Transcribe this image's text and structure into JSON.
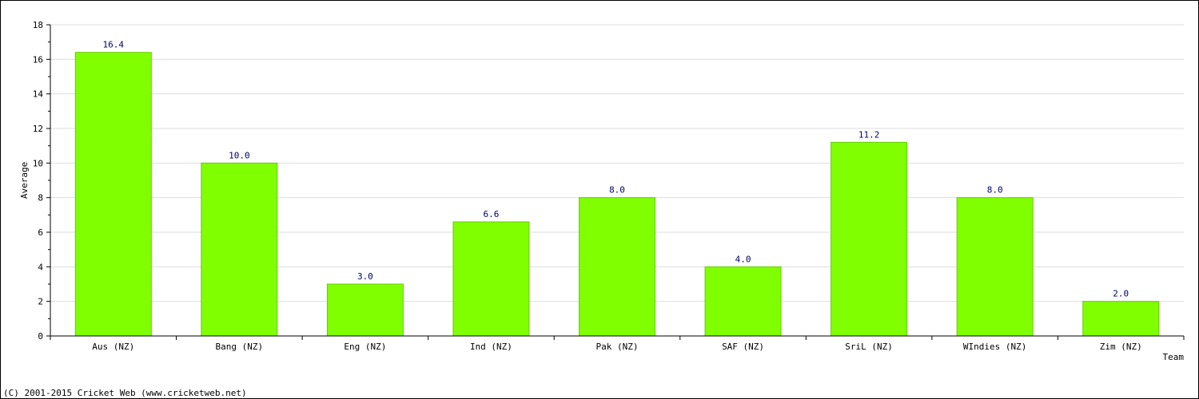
{
  "chart_data": {
    "type": "bar",
    "title": "",
    "xlabel": "Team",
    "ylabel": "Average",
    "categories": [
      "Aus (NZ)",
      "Bang (NZ)",
      "Eng (NZ)",
      "Ind (NZ)",
      "Pak (NZ)",
      "SAF (NZ)",
      "SriL (NZ)",
      "WIndies (NZ)",
      "Zim (NZ)"
    ],
    "values": [
      16.4,
      10.0,
      3.0,
      6.6,
      8.0,
      4.0,
      11.2,
      8.0,
      2.0
    ],
    "value_labels": [
      "16.4",
      "10.0",
      "3.0",
      "6.6",
      "8.0",
      "4.0",
      "11.2",
      "8.0",
      "2.0"
    ],
    "ylim": [
      0,
      18
    ],
    "yticks": [
      0,
      2,
      4,
      6,
      8,
      10,
      12,
      14,
      16,
      18
    ],
    "grid": true,
    "bar_color": "#80ff00",
    "bar_edge_color": "#66cc00",
    "grid_color": "#dddddd",
    "value_label_color": "#000066"
  },
  "footer": {
    "copyright": "(C) 2001-2015 Cricket Web (www.cricketweb.net)"
  }
}
